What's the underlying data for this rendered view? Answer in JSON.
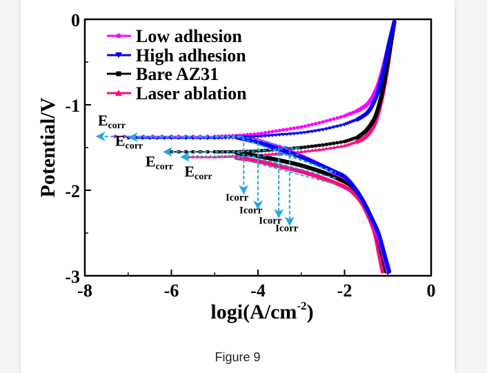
{
  "caption": "Figure 9",
  "colors": {
    "low_adhesion": "#FF00FF",
    "high_adhesion": "#0000FF",
    "bare_az31": "#000000",
    "laser_ablation": "#FF0A80",
    "annotation_arrow": "#1EA8E6"
  },
  "chart_data": {
    "type": "line",
    "title": "",
    "xlabel": "logi(A/cm",
    "xlabel_sup": "-2",
    "xlabel_close": ")",
    "ylabel": "Potential/V",
    "xlim": [
      -8,
      0
    ],
    "ylim": [
      -3,
      0
    ],
    "xticks": [
      -8,
      -6,
      -4,
      -2,
      0
    ],
    "xtick_labels": [
      "-8",
      "-6",
      "-4",
      "-2",
      "0"
    ],
    "xminor": [
      -7,
      -5,
      -3,
      -1
    ],
    "yticks": [
      0,
      -1,
      -2,
      -3
    ],
    "ytick_labels": [
      "0",
      "-1",
      "-2",
      "-3"
    ],
    "yminor": [
      -0.5,
      -1.5,
      -2.5
    ],
    "grid": false,
    "legend_position": "top-left",
    "series": [
      {
        "key": "low_adhesion",
        "name": "Low adhesion",
        "marker": "circle",
        "ecorr": -1.37,
        "anodic": [
          [
            -7.3,
            -1.37
          ],
          [
            -6,
            -1.37
          ],
          [
            -5,
            -1.37
          ],
          [
            -4.5,
            -1.36
          ],
          [
            -4,
            -1.34
          ],
          [
            -3.5,
            -1.3
          ],
          [
            -3,
            -1.26
          ],
          [
            -2.5,
            -1.2
          ],
          [
            -2,
            -1.13
          ],
          [
            -1.7,
            -1.07
          ],
          [
            -1.45,
            -0.98
          ],
          [
            -1.25,
            -0.8
          ],
          [
            -1.1,
            -0.55
          ],
          [
            -0.98,
            -0.3
          ],
          [
            -0.85,
            -0.03
          ]
        ],
        "cathodic": [
          [
            -4.5,
            -1.37
          ],
          [
            -4,
            -1.42
          ],
          [
            -3.5,
            -1.5
          ],
          [
            -3,
            -1.6
          ],
          [
            -2.5,
            -1.72
          ],
          [
            -2.2,
            -1.8
          ],
          [
            -2,
            -1.85
          ],
          [
            -1.8,
            -1.95
          ],
          [
            -1.6,
            -2.1
          ],
          [
            -1.4,
            -2.3
          ],
          [
            -1.25,
            -2.5
          ],
          [
            -1.1,
            -2.75
          ],
          [
            -1.0,
            -2.95
          ]
        ]
      },
      {
        "key": "high_adhesion",
        "name": "High adhesion",
        "marker": "triangle-down",
        "ecorr": -1.38,
        "anodic": [
          [
            -7.0,
            -1.39
          ],
          [
            -6,
            -1.39
          ],
          [
            -5,
            -1.39
          ],
          [
            -4.5,
            -1.38
          ],
          [
            -4,
            -1.37
          ],
          [
            -3.5,
            -1.35
          ],
          [
            -3,
            -1.33
          ],
          [
            -2.5,
            -1.29
          ],
          [
            -2,
            -1.23
          ],
          [
            -1.7,
            -1.17
          ],
          [
            -1.45,
            -1.08
          ],
          [
            -1.25,
            -0.88
          ],
          [
            -1.1,
            -0.6
          ],
          [
            -0.98,
            -0.3
          ],
          [
            -0.85,
            -0.03
          ]
        ],
        "cathodic": [
          [
            -4.5,
            -1.38
          ],
          [
            -4,
            -1.44
          ],
          [
            -3.5,
            -1.52
          ],
          [
            -3,
            -1.61
          ],
          [
            -2.5,
            -1.72
          ],
          [
            -2.2,
            -1.79
          ],
          [
            -2,
            -1.84
          ],
          [
            -1.8,
            -1.95
          ],
          [
            -1.6,
            -2.1
          ],
          [
            -1.4,
            -2.3
          ],
          [
            -1.22,
            -2.5
          ],
          [
            -1.08,
            -2.75
          ],
          [
            -0.97,
            -2.95
          ]
        ]
      },
      {
        "key": "bare_az31",
        "name": "Bare AZ31",
        "marker": "square",
        "ecorr": -1.55,
        "anodic": [
          [
            -6.0,
            -1.55
          ],
          [
            -5,
            -1.55
          ],
          [
            -4.5,
            -1.55
          ],
          [
            -4,
            -1.54
          ],
          [
            -3.5,
            -1.52
          ],
          [
            -3,
            -1.5
          ],
          [
            -2.5,
            -1.47
          ],
          [
            -2,
            -1.43
          ],
          [
            -1.7,
            -1.38
          ],
          [
            -1.5,
            -1.3
          ],
          [
            -1.3,
            -1.15
          ],
          [
            -1.15,
            -0.9
          ],
          [
            -1.02,
            -0.55
          ],
          [
            -0.92,
            -0.25
          ],
          [
            -0.85,
            -0.03
          ]
        ],
        "cathodic": [
          [
            -4.5,
            -1.56
          ],
          [
            -4,
            -1.6
          ],
          [
            -3.5,
            -1.65
          ],
          [
            -3,
            -1.71
          ],
          [
            -2.5,
            -1.79
          ],
          [
            -2,
            -1.9
          ],
          [
            -1.8,
            -1.97
          ],
          [
            -1.6,
            -2.1
          ],
          [
            -1.4,
            -2.3
          ],
          [
            -1.25,
            -2.5
          ],
          [
            -1.13,
            -2.75
          ],
          [
            -1.04,
            -2.95
          ]
        ]
      },
      {
        "key": "laser_ablation",
        "name": "Laser ablation",
        "marker": "triangle-up",
        "ecorr": -1.61,
        "anodic": [
          [
            -5.6,
            -1.61
          ],
          [
            -5,
            -1.61
          ],
          [
            -4.5,
            -1.6
          ],
          [
            -4,
            -1.59
          ],
          [
            -3.5,
            -1.57
          ],
          [
            -3,
            -1.55
          ],
          [
            -2.5,
            -1.52
          ],
          [
            -2,
            -1.48
          ],
          [
            -1.7,
            -1.43
          ],
          [
            -1.5,
            -1.37
          ],
          [
            -1.3,
            -1.22
          ],
          [
            -1.15,
            -0.95
          ],
          [
            -1.02,
            -0.6
          ],
          [
            -0.92,
            -0.25
          ],
          [
            -0.85,
            -0.03
          ]
        ],
        "cathodic": [
          [
            -4.5,
            -1.62
          ],
          [
            -4,
            -1.66
          ],
          [
            -3.5,
            -1.72
          ],
          [
            -3,
            -1.78
          ],
          [
            -2.5,
            -1.86
          ],
          [
            -2,
            -1.96
          ],
          [
            -1.8,
            -2.03
          ],
          [
            -1.6,
            -2.15
          ],
          [
            -1.45,
            -2.3
          ],
          [
            -1.3,
            -2.5
          ],
          [
            -1.2,
            -2.75
          ],
          [
            -1.12,
            -2.95
          ]
        ]
      }
    ],
    "annotations": {
      "ecorr": [
        {
          "label": "E",
          "sub": "corr",
          "arrow_from": [
            -4.4,
            -1.37
          ],
          "arrow_to": [
            -7.75,
            -1.37
          ],
          "text_at": [
            -7.7,
            -1.24
          ]
        },
        {
          "label": "E",
          "sub": "corr",
          "arrow_from": [
            -4.4,
            -1.38
          ],
          "arrow_to": [
            -7.0,
            -1.38
          ],
          "text_at": [
            -7.3,
            -1.48
          ]
        },
        {
          "label": "E",
          "sub": "corr",
          "arrow_from": [
            -4.4,
            -1.55
          ],
          "arrow_to": [
            -6.2,
            -1.55
          ],
          "text_at": [
            -6.6,
            -1.72
          ]
        },
        {
          "label": "E",
          "sub": "corr",
          "arrow_from": [
            -4.4,
            -1.61
          ],
          "arrow_to": [
            -5.8,
            -1.61
          ],
          "text_at": [
            -5.7,
            -1.84
          ]
        }
      ],
      "icorr": [
        {
          "label": "Icorr",
          "x": -4.33,
          "y_from": -1.38,
          "y_to": -2.05,
          "text_at": [
            -4.75,
            -2.12
          ]
        },
        {
          "label": "Icorr",
          "x": -4.0,
          "y_from": -1.44,
          "y_to": -2.23,
          "text_at": [
            -4.43,
            -2.27
          ]
        },
        {
          "label": "Icorr",
          "x": -3.52,
          "y_from": -1.5,
          "y_to": -2.33,
          "text_at": [
            -3.98,
            -2.39
          ]
        },
        {
          "label": "Icorr",
          "x": -3.27,
          "y_from": -1.53,
          "y_to": -2.42,
          "text_at": [
            -3.6,
            -2.48
          ]
        }
      ],
      "tafel_fits": [
        {
          "from": [
            -4.5,
            -1.37
          ],
          "to": [
            -2.2,
            -1.8
          ]
        },
        {
          "from": [
            -4.5,
            -1.37
          ],
          "to": [
            -2.2,
            -1.79
          ]
        },
        {
          "from": [
            -4.5,
            -1.56
          ],
          "to": [
            -2.2,
            -1.86
          ]
        },
        {
          "from": [
            -4.5,
            -1.62
          ],
          "to": [
            -2.2,
            -1.93
          ]
        },
        {
          "from": [
            -4.4,
            -1.37
          ],
          "to": [
            -3.0,
            -1.53
          ]
        },
        {
          "from": [
            -4.4,
            -1.55
          ],
          "to": [
            -3.0,
            -1.5
          ]
        },
        {
          "from": [
            -4.4,
            -1.61
          ],
          "to": [
            -3.0,
            -1.58
          ]
        }
      ]
    }
  }
}
